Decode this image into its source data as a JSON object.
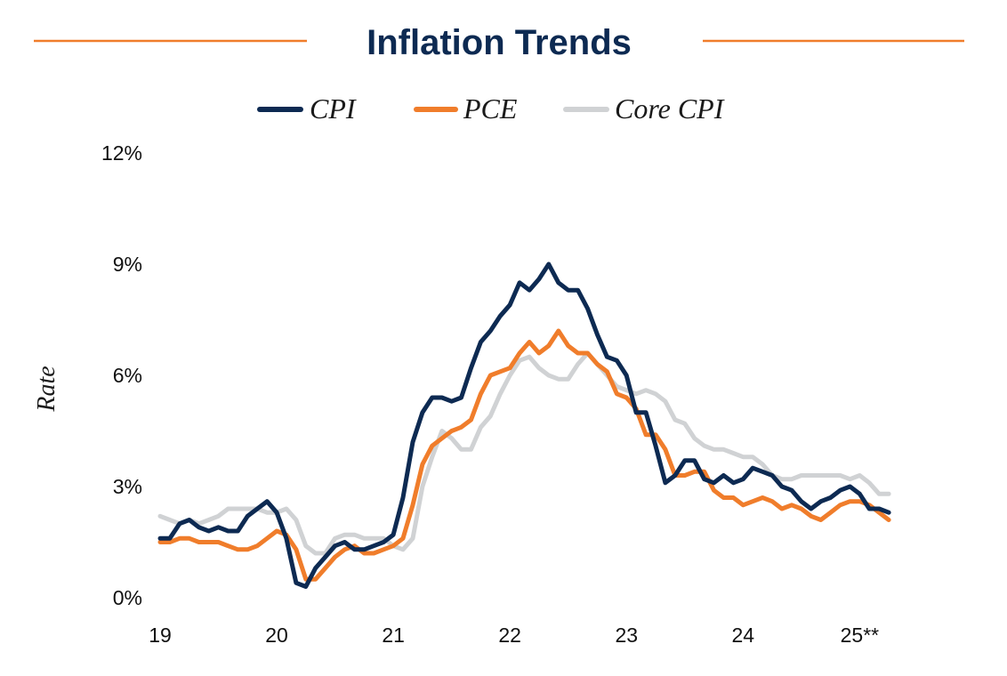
{
  "chart_data": {
    "type": "line",
    "title": "Inflation Trends",
    "xlabel": "",
    "ylabel": "Rate",
    "ylim": [
      0,
      12
    ],
    "yticks": [
      0,
      3,
      6,
      9,
      12
    ],
    "ytick_labels": [
      "0%",
      "3%",
      "6%",
      "9%",
      "12%"
    ],
    "xlim": [
      2019,
      2025.6
    ],
    "xticks": [
      2019,
      2020,
      2021,
      2022,
      2023,
      2024,
      2025
    ],
    "xtick_labels": [
      "19",
      "20",
      "21",
      "22",
      "23",
      "24",
      "25**"
    ],
    "grid": false,
    "legend_position": "top-center",
    "x": [
      2019.0,
      2019.083,
      2019.167,
      2019.25,
      2019.333,
      2019.417,
      2019.5,
      2019.583,
      2019.667,
      2019.75,
      2019.833,
      2019.917,
      2020.0,
      2020.083,
      2020.167,
      2020.25,
      2020.333,
      2020.417,
      2020.5,
      2020.583,
      2020.667,
      2020.75,
      2020.833,
      2020.917,
      2021.0,
      2021.083,
      2021.167,
      2021.25,
      2021.333,
      2021.417,
      2021.5,
      2021.583,
      2021.667,
      2021.75,
      2021.833,
      2021.917,
      2022.0,
      2022.083,
      2022.167,
      2022.25,
      2022.333,
      2022.417,
      2022.5,
      2022.583,
      2022.667,
      2022.75,
      2022.833,
      2022.917,
      2023.0,
      2023.083,
      2023.167,
      2023.25,
      2023.333,
      2023.417,
      2023.5,
      2023.583,
      2023.667,
      2023.75,
      2023.833,
      2023.917,
      2024.0,
      2024.083,
      2024.167,
      2024.25,
      2024.333,
      2024.417,
      2024.5,
      2024.583,
      2024.667,
      2024.75,
      2024.833,
      2024.917,
      2025.0,
      2025.083,
      2025.167,
      2025.25
    ],
    "series": [
      {
        "name": "CPI",
        "color": "#0d2a52",
        "values": [
          1.6,
          1.6,
          2.0,
          2.1,
          1.9,
          1.8,
          1.9,
          1.8,
          1.8,
          2.2,
          2.4,
          2.6,
          2.3,
          1.6,
          0.4,
          0.3,
          0.8,
          1.1,
          1.4,
          1.5,
          1.3,
          1.3,
          1.4,
          1.5,
          1.7,
          2.7,
          4.2,
          5.0,
          5.4,
          5.4,
          5.3,
          5.4,
          6.2,
          6.9,
          7.2,
          7.6,
          7.9,
          8.5,
          8.3,
          8.6,
          9.0,
          8.5,
          8.3,
          8.3,
          7.8,
          7.1,
          6.5,
          6.4,
          6.0,
          5.0,
          5.0,
          4.1,
          3.1,
          3.3,
          3.7,
          3.7,
          3.2,
          3.1,
          3.3,
          3.1,
          3.2,
          3.5,
          3.4,
          3.3,
          3.0,
          2.9,
          2.6,
          2.4,
          2.6,
          2.7,
          2.9,
          3.0,
          2.8,
          2.4,
          2.4,
          2.3
        ]
      },
      {
        "name": "PCE",
        "color": "#f07d2b",
        "values": [
          1.5,
          1.5,
          1.6,
          1.6,
          1.5,
          1.5,
          1.5,
          1.4,
          1.3,
          1.3,
          1.4,
          1.6,
          1.8,
          1.7,
          1.3,
          0.5,
          0.5,
          0.8,
          1.1,
          1.3,
          1.4,
          1.2,
          1.2,
          1.3,
          1.4,
          1.6,
          2.5,
          3.6,
          4.1,
          4.3,
          4.5,
          4.6,
          4.8,
          5.5,
          6.0,
          6.1,
          6.2,
          6.6,
          6.9,
          6.6,
          6.8,
          7.2,
          6.8,
          6.6,
          6.6,
          6.3,
          6.1,
          5.5,
          5.4,
          5.1,
          4.4,
          4.4,
          4.0,
          3.3,
          3.3,
          3.4,
          3.4,
          2.9,
          2.7,
          2.7,
          2.5,
          2.6,
          2.7,
          2.6,
          2.4,
          2.5,
          2.4,
          2.2,
          2.1,
          2.3,
          2.5,
          2.6,
          2.6,
          2.5,
          2.3,
          2.1
        ]
      },
      {
        "name": "Core CPI",
        "color": "#d0d2d4",
        "values": [
          2.2,
          2.1,
          2.0,
          2.1,
          2.0,
          2.1,
          2.2,
          2.4,
          2.4,
          2.4,
          2.4,
          2.3,
          2.3,
          2.4,
          2.1,
          1.4,
          1.2,
          1.2,
          1.6,
          1.7,
          1.7,
          1.6,
          1.6,
          1.6,
          1.4,
          1.3,
          1.6,
          3.0,
          3.8,
          4.5,
          4.3,
          4.0,
          4.0,
          4.6,
          4.9,
          5.5,
          6.0,
          6.4,
          6.5,
          6.2,
          6.0,
          5.9,
          5.9,
          6.3,
          6.6,
          6.3,
          6.0,
          5.7,
          5.6,
          5.5,
          5.6,
          5.5,
          5.3,
          4.8,
          4.7,
          4.3,
          4.1,
          4.0,
          4.0,
          3.9,
          3.8,
          3.8,
          3.6,
          3.3,
          3.2,
          3.2,
          3.3,
          3.3,
          3.3,
          3.3,
          3.3,
          3.2,
          3.3,
          3.1,
          2.8,
          2.8
        ]
      }
    ]
  }
}
